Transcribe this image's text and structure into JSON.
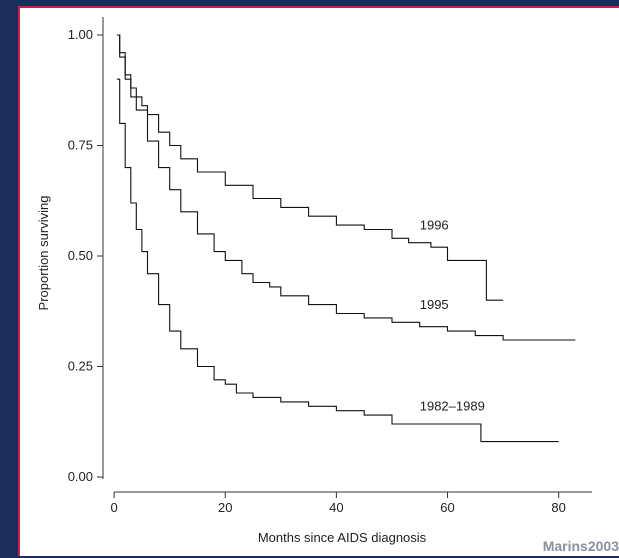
{
  "watermark": "Marins2003",
  "chart_data": {
    "type": "line",
    "step": true,
    "xlabel": "Months since AIDS diagnosis",
    "ylabel": "Proportion surviving",
    "xlim": [
      -2,
      86
    ],
    "ylim": [
      0,
      1
    ],
    "x_ticks": [
      0,
      20,
      40,
      60,
      80
    ],
    "y_ticks": [
      0.0,
      0.25,
      0.5,
      0.75,
      1.0
    ],
    "y_tick_labels": [
      "0.00",
      "0.25",
      "0.50",
      "0.75",
      "1.00"
    ],
    "grid": false,
    "series": [
      {
        "name": "1996",
        "x": [
          0.5,
          1,
          2,
          3,
          4,
          5,
          6,
          8,
          10,
          12,
          15,
          20,
          25,
          30,
          35,
          40,
          45,
          50,
          53,
          55,
          57,
          60,
          63,
          66,
          67,
          70
        ],
        "y": [
          1.0,
          0.96,
          0.91,
          0.88,
          0.86,
          0.84,
          0.82,
          0.78,
          0.75,
          0.72,
          0.69,
          0.66,
          0.63,
          0.61,
          0.59,
          0.57,
          0.56,
          0.54,
          0.53,
          0.53,
          0.52,
          0.49,
          0.49,
          0.49,
          0.4,
          0.4
        ]
      },
      {
        "name": "1995",
        "x": [
          0.5,
          1,
          2,
          3,
          4,
          6,
          8,
          10,
          12,
          15,
          18,
          20,
          23,
          25,
          28,
          30,
          35,
          40,
          45,
          50,
          55,
          60,
          65,
          70,
          75,
          80,
          83
        ],
        "y": [
          1.0,
          0.95,
          0.9,
          0.86,
          0.83,
          0.76,
          0.7,
          0.65,
          0.6,
          0.55,
          0.51,
          0.49,
          0.46,
          0.44,
          0.43,
          0.41,
          0.39,
          0.37,
          0.36,
          0.35,
          0.34,
          0.33,
          0.32,
          0.31,
          0.31,
          0.31,
          0.31
        ]
      },
      {
        "name": "1982–1989",
        "x": [
          0.5,
          1,
          2,
          3,
          4,
          5,
          6,
          8,
          10,
          12,
          15,
          18,
          20,
          22,
          25,
          28,
          30,
          35,
          40,
          45,
          50,
          55,
          60,
          65,
          66,
          70,
          75,
          80
        ],
        "y": [
          0.9,
          0.8,
          0.7,
          0.62,
          0.56,
          0.51,
          0.46,
          0.39,
          0.33,
          0.29,
          0.25,
          0.22,
          0.21,
          0.19,
          0.18,
          0.18,
          0.17,
          0.16,
          0.15,
          0.14,
          0.12,
          0.12,
          0.12,
          0.12,
          0.08,
          0.08,
          0.08,
          0.08
        ]
      }
    ],
    "annotations": [
      {
        "text": "1996",
        "x": 55,
        "y": 0.56
      },
      {
        "text": "1995",
        "x": 55,
        "y": 0.38
      },
      {
        "text": "1982–1989",
        "x": 55,
        "y": 0.15
      }
    ]
  }
}
